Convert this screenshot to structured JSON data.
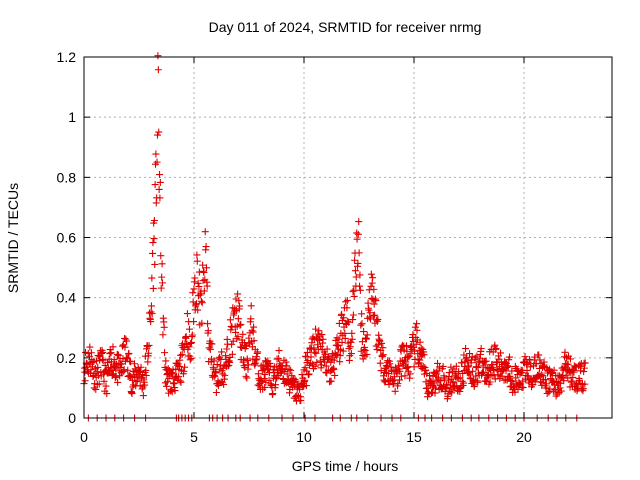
{
  "chart_data": {
    "type": "scatter",
    "title": "Day 011 of 2024, SRMTID for receiver nrmg",
    "xlabel": "GPS time / hours",
    "ylabel": "SRMTID / TECUs",
    "xlim": [
      0,
      24
    ],
    "ylim": [
      0,
      1.2
    ],
    "x_ticks": [
      0,
      5,
      10,
      15,
      20
    ],
    "x_tick_labels": [
      "0",
      "5",
      "10",
      "15",
      "20"
    ],
    "y_ticks": [
      0,
      0.2,
      0.4,
      0.6,
      0.8,
      1.0,
      1.2
    ],
    "y_tick_labels": [
      "0",
      "0.2",
      "0.4",
      "0.6",
      "0.8",
      "1",
      "1.2"
    ],
    "grid": true,
    "marker": "+",
    "color": "#e00000",
    "series": [
      {
        "name": "SRMTID",
        "keypoints": [
          [
            0.0,
            0.17
          ],
          [
            0.3,
            0.2
          ],
          [
            0.5,
            0.14
          ],
          [
            0.8,
            0.18
          ],
          [
            1.0,
            0.12
          ],
          [
            1.3,
            0.2
          ],
          [
            1.6,
            0.15
          ],
          [
            1.9,
            0.22
          ],
          [
            2.2,
            0.12
          ],
          [
            2.5,
            0.16
          ],
          [
            2.7,
            0.11
          ],
          [
            2.9,
            0.22
          ],
          [
            3.05,
            0.35
          ],
          [
            3.15,
            0.55
          ],
          [
            3.25,
            0.7
          ],
          [
            3.32,
            0.9
          ],
          [
            3.38,
            1.05
          ],
          [
            3.45,
            0.7
          ],
          [
            3.55,
            0.42
          ],
          [
            3.7,
            0.15
          ],
          [
            3.9,
            0.12
          ],
          [
            4.1,
            0.13
          ],
          [
            4.3,
            0.14
          ],
          [
            4.5,
            0.2
          ],
          [
            4.7,
            0.3
          ],
          [
            4.85,
            0.2
          ],
          [
            5.0,
            0.42
          ],
          [
            5.15,
            0.48
          ],
          [
            5.3,
            0.35
          ],
          [
            5.45,
            0.45
          ],
          [
            5.55,
            0.55
          ],
          [
            5.65,
            0.25
          ],
          [
            5.8,
            0.2
          ],
          [
            6.0,
            0.12
          ],
          [
            6.2,
            0.18
          ],
          [
            6.4,
            0.15
          ],
          [
            6.6,
            0.25
          ],
          [
            6.8,
            0.3
          ],
          [
            7.0,
            0.35
          ],
          [
            7.2,
            0.22
          ],
          [
            7.4,
            0.18
          ],
          [
            7.6,
            0.3
          ],
          [
            7.8,
            0.2
          ],
          [
            8.0,
            0.13
          ],
          [
            8.3,
            0.15
          ],
          [
            8.6,
            0.12
          ],
          [
            8.9,
            0.18
          ],
          [
            9.2,
            0.15
          ],
          [
            9.5,
            0.1
          ],
          [
            9.8,
            0.08
          ],
          [
            10.0,
            0.14
          ],
          [
            10.3,
            0.2
          ],
          [
            10.6,
            0.25
          ],
          [
            10.9,
            0.2
          ],
          [
            11.2,
            0.15
          ],
          [
            11.5,
            0.22
          ],
          [
            11.8,
            0.3
          ],
          [
            11.95,
            0.38
          ],
          [
            12.1,
            0.2
          ],
          [
            12.3,
            0.45
          ],
          [
            12.45,
            0.62
          ],
          [
            12.6,
            0.3
          ],
          [
            12.8,
            0.22
          ],
          [
            12.95,
            0.38
          ],
          [
            13.1,
            0.45
          ],
          [
            13.3,
            0.3
          ],
          [
            13.6,
            0.18
          ],
          [
            13.9,
            0.15
          ],
          [
            14.2,
            0.13
          ],
          [
            14.5,
            0.2
          ],
          [
            14.8,
            0.18
          ],
          [
            15.1,
            0.25
          ],
          [
            15.4,
            0.18
          ],
          [
            15.6,
            0.1
          ],
          [
            15.9,
            0.12
          ],
          [
            16.2,
            0.15
          ],
          [
            16.5,
            0.1
          ],
          [
            16.8,
            0.14
          ],
          [
            17.1,
            0.12
          ],
          [
            17.4,
            0.2
          ],
          [
            17.7,
            0.15
          ],
          [
            18.0,
            0.18
          ],
          [
            18.3,
            0.15
          ],
          [
            18.6,
            0.2
          ],
          [
            18.9,
            0.16
          ],
          [
            19.2,
            0.18
          ],
          [
            19.5,
            0.13
          ],
          [
            19.8,
            0.12
          ],
          [
            20.1,
            0.16
          ],
          [
            20.4,
            0.14
          ],
          [
            20.7,
            0.18
          ],
          [
            21.0,
            0.12
          ],
          [
            21.3,
            0.13
          ],
          [
            21.6,
            0.1
          ],
          [
            21.9,
            0.18
          ],
          [
            22.2,
            0.14
          ],
          [
            22.5,
            0.13
          ],
          [
            22.8,
            0.14
          ]
        ],
        "zero_level_hours": [
          0.2,
          0.6,
          1.0,
          1.4,
          1.8,
          2.3,
          2.8,
          4.2,
          4.3,
          4.45,
          4.6,
          4.75,
          4.9,
          5.7,
          5.85,
          6.05,
          6.3,
          6.55,
          6.9,
          7.1,
          7.55,
          7.9,
          8.4,
          9.0,
          9.5,
          10.05,
          10.5,
          11.3,
          11.65,
          12.15,
          12.4,
          12.9,
          13.5,
          14.0,
          14.4,
          15.2,
          15.5,
          15.8,
          16.3,
          16.7,
          17.2,
          17.6,
          17.95,
          18.4,
          18.8,
          19.2,
          19.6,
          20.0,
          20.6,
          21.1,
          21.5,
          21.9,
          22.4
        ]
      }
    ]
  }
}
